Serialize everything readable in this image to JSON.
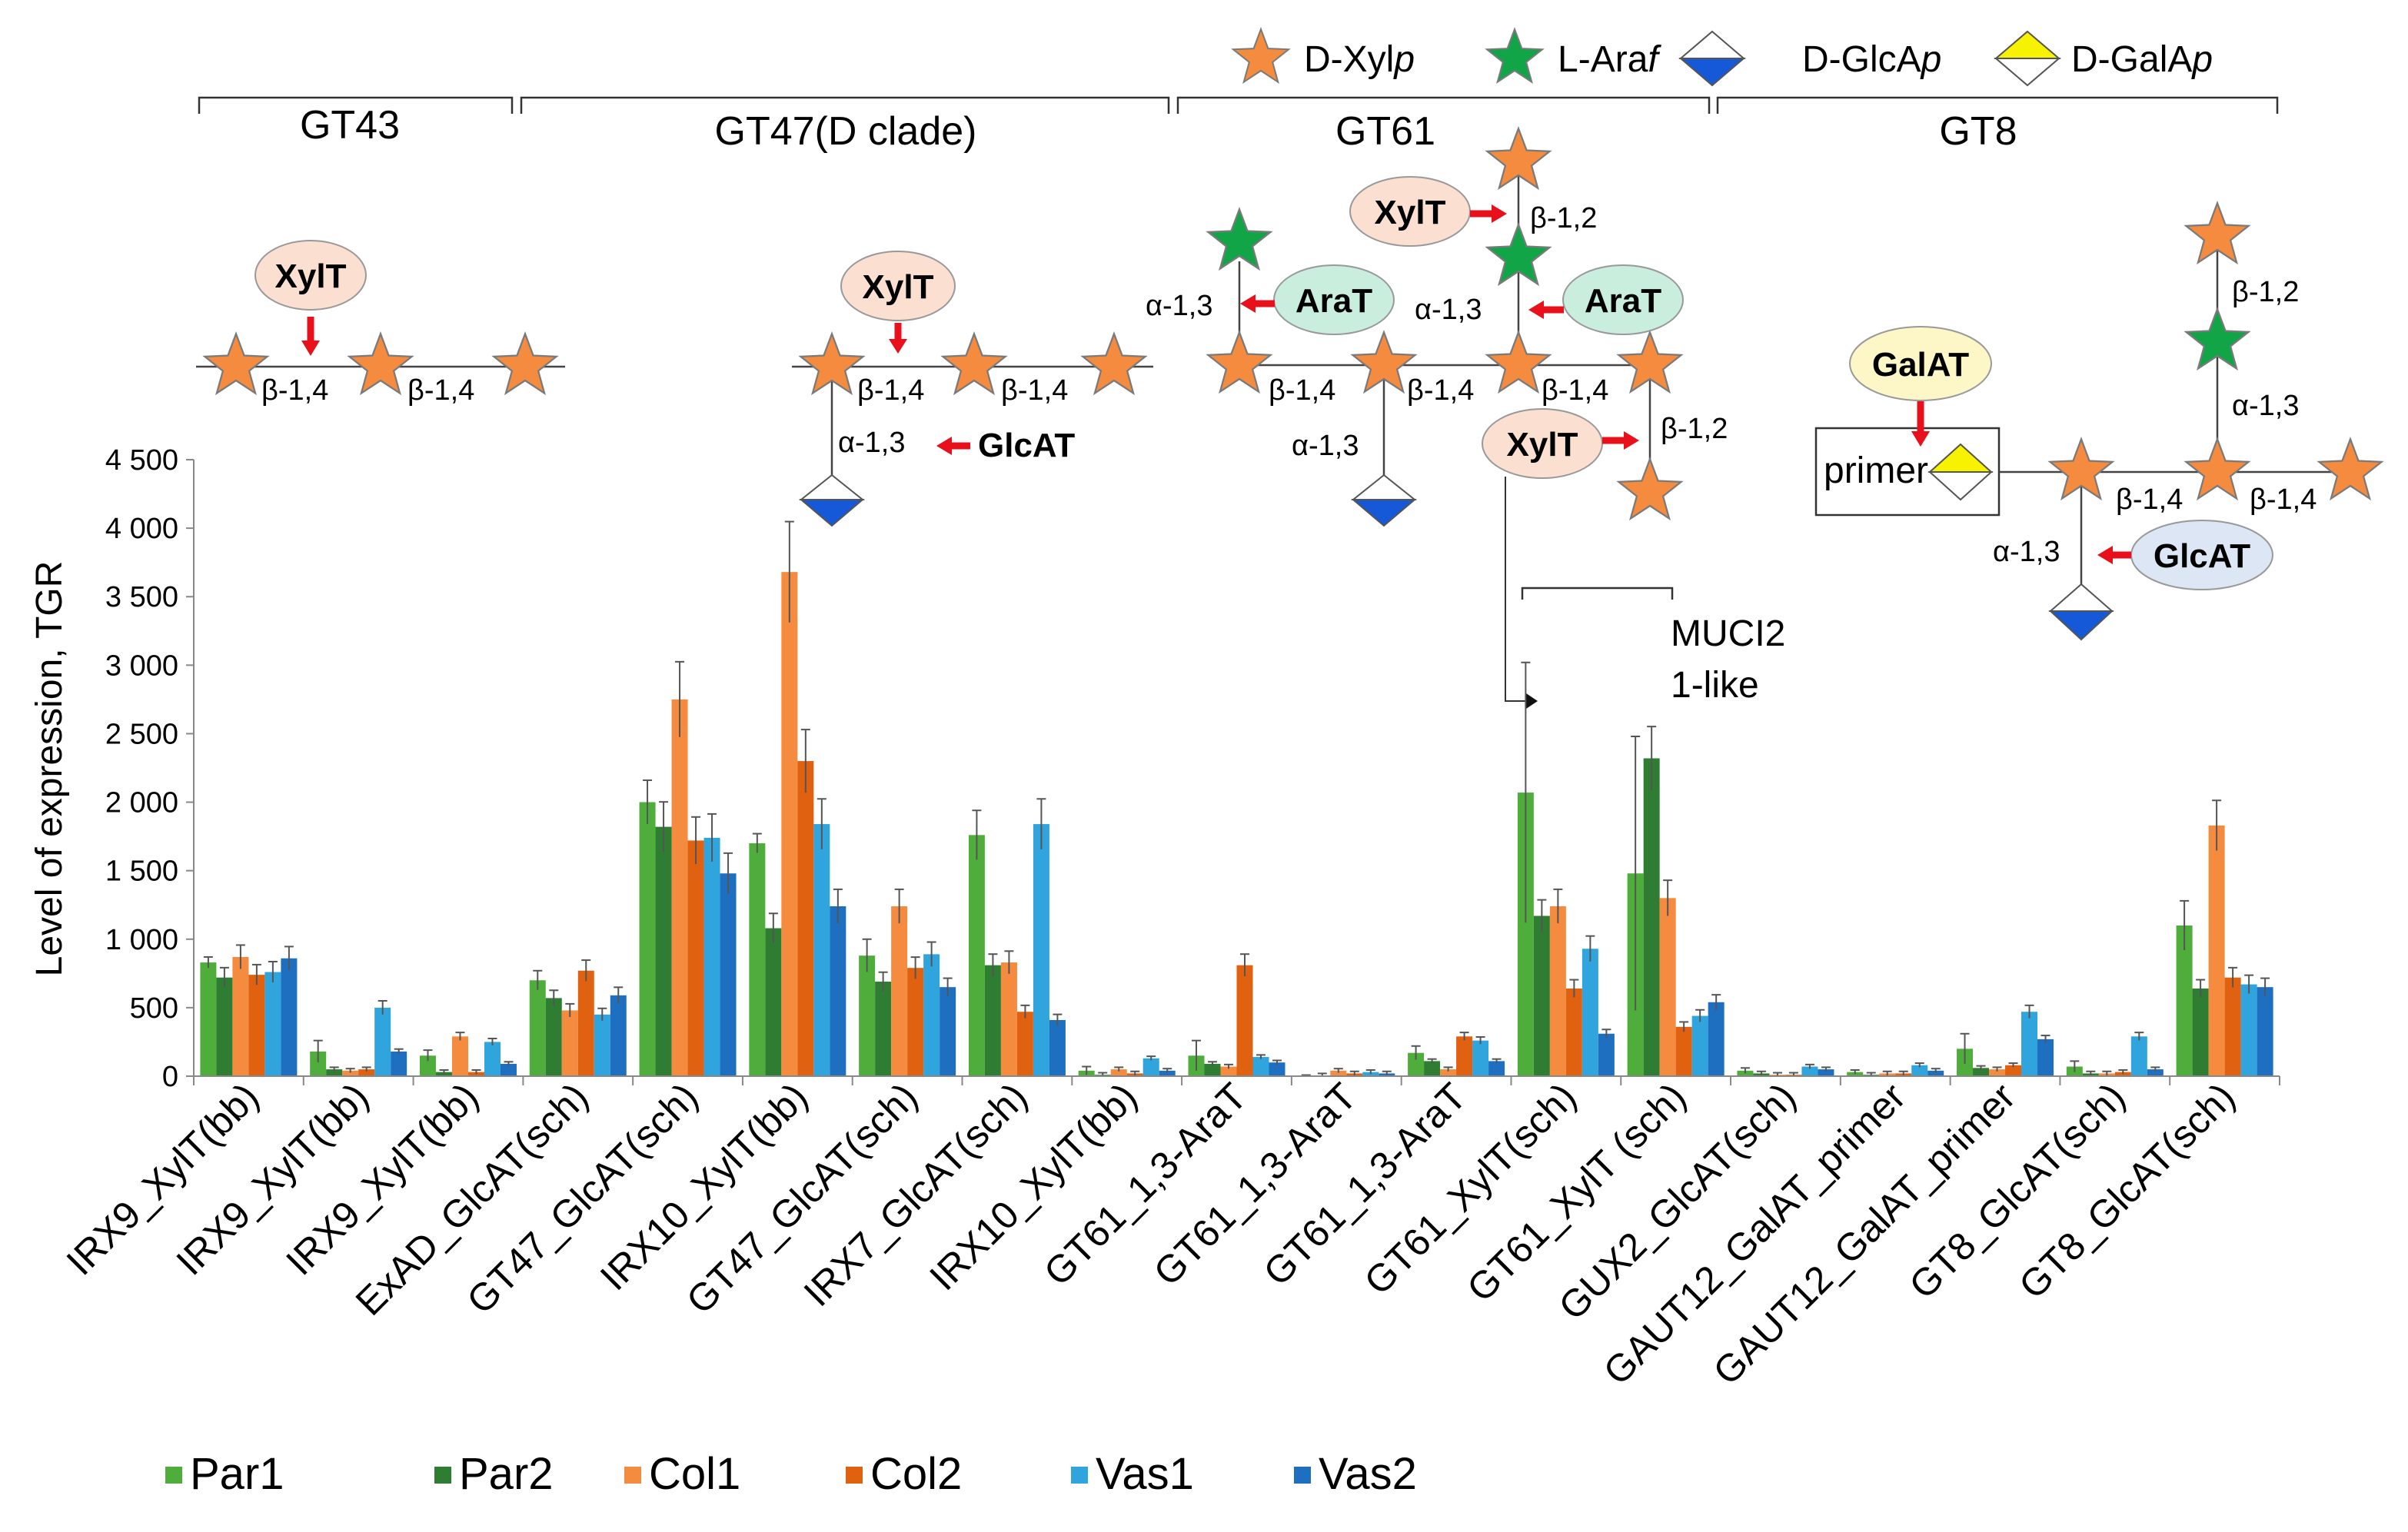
{
  "chart_data": {
    "type": "bar",
    "ylabel": "Level of expression, TGR",
    "xlabel": "",
    "ylim": [
      0,
      4500
    ],
    "yticks": [
      "0",
      "500",
      "1 000",
      "1 500",
      "2 000",
      "2 500",
      "3 000",
      "3 500",
      "4 000",
      "4 500"
    ],
    "categories": [
      "IRX9_XylT(bb)",
      "IRX9_XylT(bb)",
      "IRX9_XylT(bb)",
      "ExAD_GlcAT(sch)",
      "GT47_GlcAT(sch)",
      "IRX10_XylT(bb)",
      "GT47_GlcAT(sch)",
      "IRX7_GlcAT(sch)",
      "IRX10_XylT(bb)",
      "GT61_1,3-AraT",
      "GT61_1,3-AraT",
      "GT61_1,3-AraT",
      "GT61_XylT(sch)",
      "GT61_XylT (sch)",
      "GUX2_GlcAT(sch)",
      "GAUT12_GalAT_primer",
      "GAUT12_GalAT_primer",
      "GT8_GlcAT(sch)",
      "GT8_GlcAT(sch)"
    ],
    "series": [
      {
        "name": "Par1",
        "color": "#4FAE3B",
        "values": [
          830,
          180,
          150,
          700,
          2000,
          1700,
          880,
          1760,
          40,
          150,
          5,
          170,
          2070,
          1480,
          40,
          30,
          200,
          70,
          1100
        ],
        "errors": [
          40,
          80,
          40,
          70,
          160,
          70,
          120,
          180,
          30,
          110,
          3,
          50,
          950,
          1000,
          20,
          15,
          110,
          40,
          180
        ]
      },
      {
        "name": "Par2",
        "color": "#2E7D32",
        "values": [
          720,
          50,
          30,
          570,
          1820,
          1080,
          690,
          810,
          10,
          90,
          5,
          110,
          1170,
          2320,
          20,
          10,
          60,
          20,
          640
        ]
      },
      {
        "name": "Col1",
        "color": "#F58B3F",
        "values": [
          870,
          40,
          290,
          480,
          2750,
          3680,
          1240,
          830,
          50,
          70,
          40,
          50,
          1240,
          1300,
          10,
          20,
          50,
          20,
          1830
        ]
      },
      {
        "name": "Col2",
        "color": "#E0610F",
        "values": [
          740,
          50,
          30,
          770,
          1720,
          2300,
          790,
          470,
          20,
          810,
          20,
          290,
          640,
          360,
          10,
          20,
          80,
          30,
          720
        ]
      },
      {
        "name": "Vas1",
        "color": "#2FA4DD",
        "values": [
          760,
          500,
          250,
          450,
          1740,
          1840,
          890,
          1840,
          130,
          140,
          30,
          260,
          930,
          440,
          70,
          80,
          470,
          290,
          670
        ]
      },
      {
        "name": "Vas2",
        "color": "#1F6FC1",
        "values": [
          860,
          180,
          90,
          590,
          1480,
          1240,
          650,
          410,
          40,
          100,
          20,
          110,
          310,
          540,
          50,
          40,
          270,
          50,
          650
        ]
      }
    ],
    "legend": {
      "placement": "bottom"
    }
  },
  "annotations": {
    "families": [
      "GT43",
      "GT47(D clade)",
      "GT61",
      "GT8"
    ],
    "sugars": [
      {
        "label": "D-Xylp",
        "prefix": "D-",
        "name": "Xyl",
        "suffix": "p",
        "color": "#F58B3F"
      },
      {
        "label": "L-Araf",
        "prefix": "L-",
        "name": "Ara",
        "suffix": "f",
        "color": "#11A548"
      },
      {
        "label": "D-GlcAp",
        "prefix": "D-",
        "name": "GlcA",
        "suffix": "p",
        "color": "#1559D8"
      },
      {
        "label": "D-GalAp",
        "prefix": "D-",
        "name": "GalA",
        "suffix": "p",
        "color": "#F6F200"
      }
    ],
    "enzymes": {
      "xylt": "XylT",
      "arat": "AraT",
      "glcat": "GlcAT",
      "galat": "GalAT"
    },
    "linkages": {
      "b14": "β-1,4",
      "b12": "β-1,2",
      "a13": "α-1,3"
    },
    "primer": "primer",
    "mucl_line1": "MUCI2",
    "mucl_line2": "1-like"
  },
  "colors": {
    "enzyme_fill": "#FBE0D2",
    "arat_fill": "#C9EEDD",
    "glcat_fill": "#DCE6F5",
    "galat_fill": "#FDF7C8",
    "arrow": "#E8101B"
  }
}
